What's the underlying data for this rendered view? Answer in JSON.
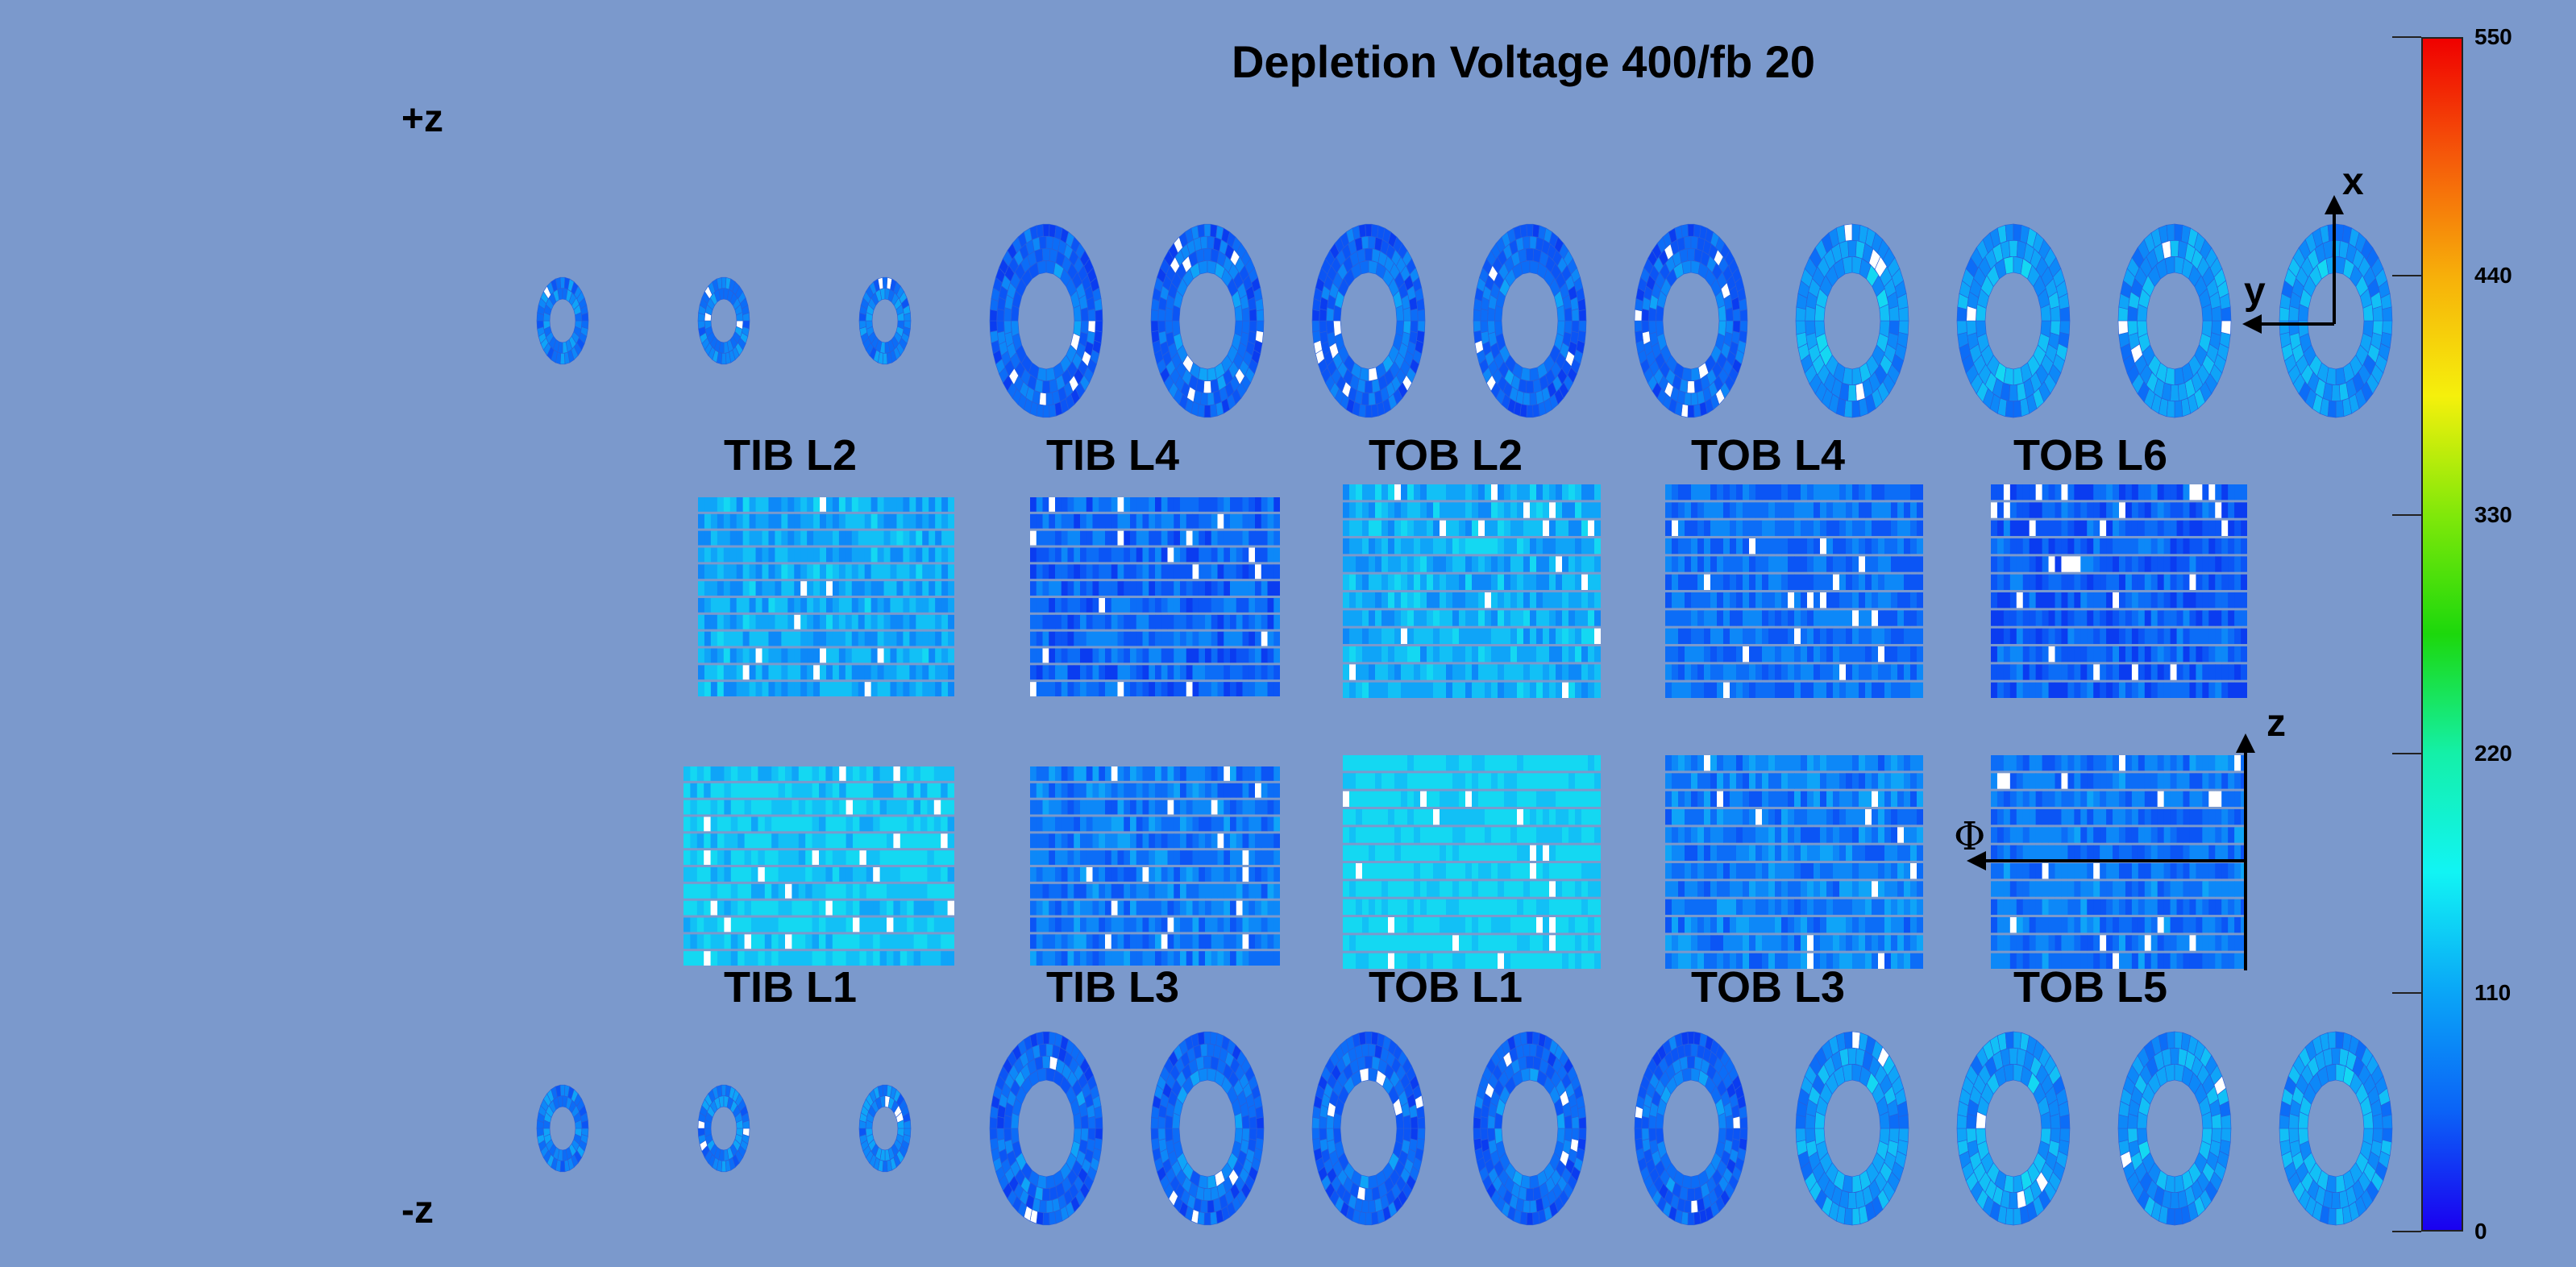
{
  "title": "Depletion Voltage 400/fb 20",
  "z_labels": {
    "plus": "+z",
    "minus": "-z"
  },
  "layers_top": [
    "TIB L2",
    "TIB L4",
    "TOB L2",
    "TOB L4",
    "TOB L6"
  ],
  "layers_bottom": [
    "TIB L1",
    "TIB L3",
    "TOB L1",
    "TOB L3",
    "TOB L5"
  ],
  "axes": {
    "x": "x",
    "y": "y",
    "z": "z",
    "phi": "Φ"
  },
  "colorbar": {
    "min": 0,
    "max": 550,
    "ticks": [
      "550",
      "440",
      "330",
      "220",
      "110",
      "0"
    ],
    "colors": [
      "#1a00f0",
      "#0b63f7",
      "#0aa6f7",
      "#11f4f4",
      "#14f0a8",
      "#1cd80c",
      "#80e80a",
      "#f5f00c",
      "#f7b00a",
      "#f55a0a",
      "#f00000"
    ]
  }
}
